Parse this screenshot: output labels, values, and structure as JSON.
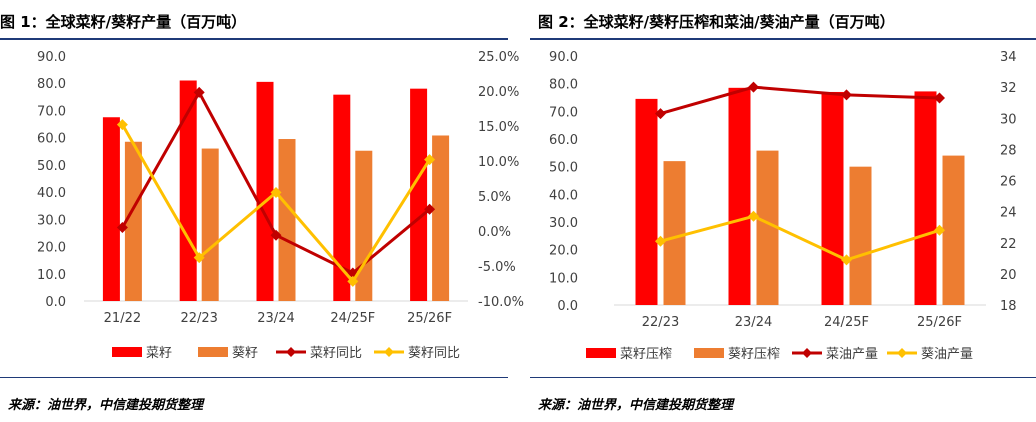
{
  "colors": {
    "rapeseed": "#ff0000",
    "sunflower": "#ed7d31",
    "rapeseed_yoy": "#c00000",
    "sunflower_yoy": "#ffc000",
    "title_rule": "#1f3a78"
  },
  "left": {
    "title": "图 1：全球菜籽/葵籽产量（百万吨）",
    "source": "来源：油世界，中信建投期货整理"
  },
  "right": {
    "title": "图 2：全球菜籽/葵籽压榨和菜油/葵油产量（百万吨）",
    "source": "来源：油世界，中信建投期货整理"
  },
  "chart_data": [
    {
      "type": "bar",
      "categories": [
        "21/22",
        "22/23",
        "23/24",
        "24/25F",
        "25/26F"
      ],
      "y_left": {
        "ylim": [
          0,
          90
        ],
        "ticks": [
          "0.0",
          "10.0",
          "20.0",
          "30.0",
          "40.0",
          "50.0",
          "60.0",
          "70.0",
          "80.0",
          "90.0"
        ]
      },
      "y_right": {
        "ylim": [
          -10,
          25
        ],
        "ticks": [
          "-10.0%",
          "-5.0%",
          "0.0%",
          "5.0%",
          "10.0%",
          "15.0%",
          "20.0%",
          "25.0%"
        ]
      },
      "series": [
        {
          "name": "菜籽",
          "kind": "bar",
          "axis": "left",
          "color": "#ff0000",
          "values": [
            67.5,
            81.0,
            80.5,
            75.8,
            78.0
          ]
        },
        {
          "name": "葵籽",
          "kind": "bar",
          "axis": "left",
          "color": "#ed7d31",
          "values": [
            58.5,
            56.0,
            59.5,
            55.2,
            60.8
          ]
        },
        {
          "name": "菜籽同比",
          "kind": "line",
          "axis": "right",
          "color": "#c00000",
          "values": [
            0.5,
            19.8,
            -0.6,
            -6.0,
            3.1
          ]
        },
        {
          "name": "葵籽同比",
          "kind": "line",
          "axis": "right",
          "color": "#ffc000",
          "values": [
            15.2,
            -3.8,
            5.5,
            -7.2,
            10.2
          ]
        }
      ],
      "legend": "bottom",
      "grid": false
    },
    {
      "type": "bar",
      "categories": [
        "22/23",
        "23/24",
        "24/25F",
        "25/26F"
      ],
      "y_left": {
        "ylim": [
          0,
          90
        ],
        "ticks": [
          "0.0",
          "10.0",
          "20.0",
          "30.0",
          "40.0",
          "50.0",
          "60.0",
          "70.0",
          "80.0",
          "90.0"
        ]
      },
      "y_right": {
        "ylim": [
          18,
          34
        ],
        "ticks": [
          "18",
          "20",
          "22",
          "24",
          "26",
          "28",
          "30",
          "32",
          "34"
        ]
      },
      "series": [
        {
          "name": "菜籽压榨",
          "kind": "bar",
          "axis": "left",
          "color": "#ff0000",
          "values": [
            74.5,
            78.5,
            77.0,
            77.2
          ]
        },
        {
          "name": "葵籽压榨",
          "kind": "bar",
          "axis": "left",
          "color": "#ed7d31",
          "values": [
            52.0,
            55.8,
            50.0,
            54.0
          ]
        },
        {
          "name": "菜油产量",
          "kind": "line",
          "axis": "right",
          "color": "#c00000",
          "values": [
            30.3,
            32.0,
            31.5,
            31.3
          ]
        },
        {
          "name": "葵油产量",
          "kind": "line",
          "axis": "right",
          "color": "#ffc000",
          "values": [
            22.1,
            23.7,
            20.9,
            22.8
          ]
        }
      ],
      "legend": "bottom",
      "grid": false
    }
  ]
}
